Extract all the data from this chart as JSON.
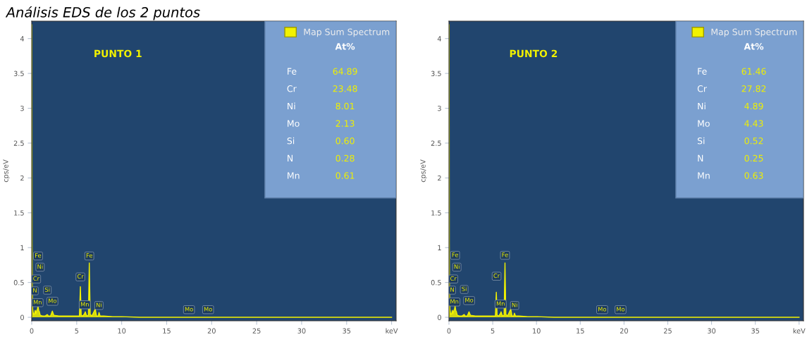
{
  "chart_data": [
    {
      "type": "area",
      "title": "Análisis EDS de los 2 puntos",
      "ylabel": "cps/eV",
      "x": [
        0,
        0.02,
        0.04,
        0.06,
        0.1,
        0.2,
        0.3,
        0.39,
        0.45,
        0.52,
        0.57,
        0.64,
        0.7,
        0.78,
        0.85,
        0.95,
        1.2,
        1.5,
        1.74,
        1.85,
        2.1,
        2.29,
        2.45,
        3,
        4,
        5,
        5.3,
        5.41,
        5.5,
        5.7,
        5.9,
        5.95,
        6.1,
        6.3,
        6.4,
        6.5,
        6.7,
        7.06,
        7.2,
        7.4,
        7.48,
        7.6,
        8,
        9,
        10,
        12,
        15,
        20,
        30,
        40
      ],
      "series": [
        {
          "name": "Map Sum Spectrum",
          "color": "#f2f200",
          "values": [
            0,
            4.2,
            1.05,
            0.4,
            0.12,
            0.04,
            0.05,
            0.1,
            0.05,
            0.08,
            0.1,
            0.12,
            0.16,
            0.1,
            0.08,
            0.03,
            0.02,
            0.02,
            0.04,
            0.02,
            0.02,
            0.09,
            0.03,
            0.02,
            0.02,
            0.02,
            0.02,
            0.44,
            0.03,
            0.02,
            0.06,
            0.08,
            0.02,
            0.03,
            0.78,
            0.04,
            0.02,
            0.12,
            0.02,
            0.02,
            0.07,
            0.02,
            0.02,
            0.01,
            0.01,
            0,
            0,
            0,
            0,
            0
          ]
        }
      ],
      "xlim": [
        0,
        40.5
      ],
      "xticks": [
        0,
        5,
        10,
        15,
        20,
        25,
        30,
        35,
        {
          "value": 40,
          "label": "keV"
        }
      ],
      "ylim": [
        -0.05,
        4.25
      ],
      "yticks": [
        0,
        0.5,
        1,
        1.5,
        2,
        2.5,
        3,
        3.5,
        4
      ],
      "legend": "top right",
      "grid": false,
      "annotations": [
        "PUNTO 1",
        "At%",
        "Fe",
        "64.89",
        "Cr",
        "23.48",
        "Ni",
        "8.01",
        "Mo",
        "2.13",
        "Si",
        "0.60",
        "N",
        "0.28",
        "Mn",
        "0.61",
        {
          "text": "Fe",
          "x": 0.7,
          "y": 0.88
        },
        {
          "text": "Ni",
          "x": 0.93,
          "y": 0.72
        },
        {
          "text": "Cr",
          "x": 0.5,
          "y": 0.55
        },
        {
          "text": "N",
          "x": 0.35,
          "y": 0.38
        },
        {
          "text": "Mn",
          "x": 0.65,
          "y": 0.21
        },
        {
          "text": "Si",
          "x": 1.74,
          "y": 0.39
        },
        {
          "text": "Mo",
          "x": 2.3,
          "y": 0.23
        },
        {
          "text": "Cr",
          "x": 5.41,
          "y": 0.58
        },
        {
          "text": "Fe",
          "x": 6.4,
          "y": 0.88
        },
        {
          "text": "Mn",
          "x": 5.9,
          "y": 0.18
        },
        {
          "text": "Ni",
          "x": 7.47,
          "y": 0.17
        },
        {
          "text": "Mo",
          "x": 17.48,
          "y": 0.11
        },
        {
          "text": "Mo",
          "x": 19.6,
          "y": 0.11
        }
      ]
    },
    {
      "type": "area",
      "ylabel": "cps/eV",
      "x": [
        0,
        0.02,
        0.04,
        0.06,
        0.1,
        0.2,
        0.3,
        0.39,
        0.45,
        0.52,
        0.57,
        0.64,
        0.7,
        0.78,
        0.85,
        0.95,
        1.2,
        1.5,
        1.74,
        1.85,
        2.1,
        2.29,
        2.45,
        3,
        4,
        5,
        5.3,
        5.41,
        5.5,
        5.7,
        5.9,
        5.95,
        6.1,
        6.3,
        6.4,
        6.5,
        6.7,
        7.06,
        7.2,
        7.4,
        7.48,
        7.6,
        8,
        9,
        10,
        12,
        15,
        20,
        30,
        40
      ],
      "series": [
        {
          "name": "Map Sum Spectrum",
          "color": "#f2f200",
          "values": [
            0,
            4.2,
            1.05,
            0.4,
            0.12,
            0.04,
            0.05,
            0.1,
            0.05,
            0.08,
            0.1,
            0.12,
            0.16,
            0.1,
            0.08,
            0.03,
            0.02,
            0.02,
            0.04,
            0.02,
            0.02,
            0.08,
            0.03,
            0.02,
            0.02,
            0.02,
            0.02,
            0.36,
            0.03,
            0.02,
            0.06,
            0.08,
            0.02,
            0.03,
            0.78,
            0.04,
            0.02,
            0.12,
            0.02,
            0.02,
            0.06,
            0.02,
            0.02,
            0.01,
            0.01,
            0,
            0,
            0,
            0,
            0
          ]
        }
      ],
      "xlim": [
        0,
        40.5
      ],
      "xticks": [
        0,
        5,
        10,
        15,
        20,
        25,
        30,
        35,
        {
          "value": 40,
          "label": "keV"
        }
      ],
      "ylim": [
        -0.05,
        4.25
      ],
      "yticks": [
        0,
        0.5,
        1,
        1.5,
        2,
        2.5,
        3,
        3.5,
        4
      ],
      "legend": "top right",
      "grid": false,
      "annotations": [
        "PUNTO 2",
        "At%",
        "Fe",
        "61.46",
        "Cr",
        "27.82",
        "Ni",
        "4.89",
        "Mo",
        "4.43",
        "Si",
        "0.52",
        "N",
        "0.25",
        "Mn",
        "0.63",
        {
          "text": "Fe",
          "x": 0.7,
          "y": 0.89
        },
        {
          "text": "Ni",
          "x": 0.9,
          "y": 0.72
        },
        {
          "text": "Cr",
          "x": 0.5,
          "y": 0.55
        },
        {
          "text": "N",
          "x": 0.37,
          "y": 0.39
        },
        {
          "text": "Mn",
          "x": 0.62,
          "y": 0.22
        },
        {
          "text": "Si",
          "x": 1.74,
          "y": 0.4
        },
        {
          "text": "Mo",
          "x": 2.3,
          "y": 0.24
        },
        {
          "text": "Cr",
          "x": 5.44,
          "y": 0.59
        },
        {
          "text": "Fe",
          "x": 6.4,
          "y": 0.89
        },
        {
          "text": "Mn",
          "x": 5.9,
          "y": 0.19
        },
        {
          "text": "Ni",
          "x": 7.5,
          "y": 0.17
        },
        {
          "text": "Mo",
          "x": 17.5,
          "y": 0.11
        },
        {
          "text": "Mo",
          "x": 19.6,
          "y": 0.11
        }
      ]
    }
  ]
}
